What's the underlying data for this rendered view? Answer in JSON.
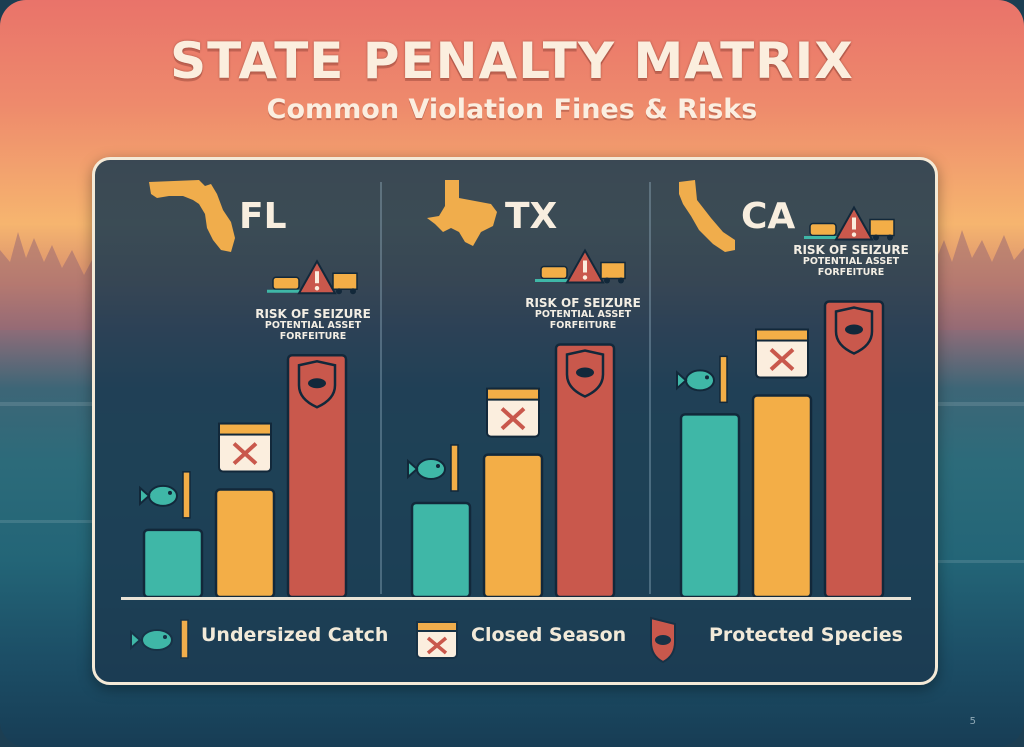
{
  "title": "STATE PENALTY MATRIX",
  "subtitle": "Common Violation Fines & Risks",
  "colors": {
    "undersized": "#3fb7a7",
    "closed_season": "#f3ae47",
    "protected": "#c9584c",
    "panel": "#1c3a50"
  },
  "risk_note": {
    "line1": "RISK OF SEIZURE",
    "line2": "POTENTIAL ASSET",
    "line3": "FORFEITURE"
  },
  "chart_data": {
    "type": "bar",
    "title": "STATE PENALTY MATRIX",
    "subtitle": "Common Violation Fines & Risks",
    "categories": [
      "FL",
      "TX",
      "CA"
    ],
    "series": [
      {
        "name": "Undersized Catch",
        "values": [
          2.5,
          3.5,
          6.8
        ]
      },
      {
        "name": "Closed Season",
        "values": [
          4.0,
          5.3,
          7.5
        ]
      },
      {
        "name": "Protected Species",
        "values": [
          9.0,
          9.4,
          11.0
        ]
      }
    ],
    "annotations": [
      "RISK OF SEIZURE POTENTIAL ASSET FORFEITURE"
    ],
    "ylim": [
      0,
      12
    ],
    "axes_visible": false,
    "legend_position": "bottom"
  },
  "page_number": "5"
}
